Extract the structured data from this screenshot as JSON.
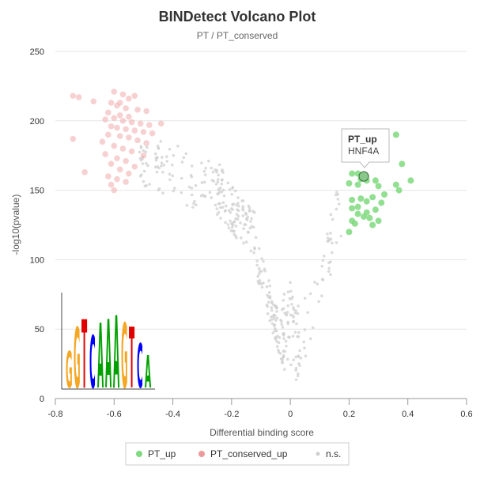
{
  "colors": {
    "pt_up": "#7fd97f",
    "pt_up_stroke": "#5fc35f",
    "pt_conserved_up": "#f2b3b3",
    "ns": "#cfcfcf",
    "grid": "#e6e6e6",
    "highlight": "#8bc78b"
  },
  "tooltip": {
    "series": "PT_up",
    "label": "HNF4A"
  },
  "legend": [
    {
      "name": "PT_up",
      "color": "#7fd97f"
    },
    {
      "name": "PT_conserved_up",
      "color": "#ee9a9a"
    },
    {
      "name": "n.s.",
      "color": "#cfcfcf"
    }
  ],
  "motif_logo": {
    "letters": [
      "G",
      "G",
      "T",
      "C",
      "A",
      "A",
      "A",
      "G",
      "T",
      "C",
      "A"
    ],
    "letter_colors": [
      "#f5a623",
      "#f5a623",
      "#e00000",
      "#0000ff",
      "#00a000",
      "#00a000",
      "#00a000",
      "#f5a623",
      "#e00000",
      "#0000ff",
      "#00a000"
    ]
  },
  "chart_data": {
    "type": "scatter",
    "title": "BINDetect Volcano Plot",
    "subtitle": "PT / PT_conserved",
    "xlabel": "Differential binding score",
    "ylabel": "-log10(pvalue)",
    "xlim": [
      -0.8,
      0.6
    ],
    "ylim": [
      0,
      250
    ],
    "x_ticks": [
      "-0.8",
      "-0.6",
      "-0.4",
      "-0.2",
      "0",
      "0.2",
      "0.4",
      "0.6"
    ],
    "y_ticks": [
      "0",
      "50",
      "100",
      "150",
      "200",
      "250"
    ],
    "grid": "horizontal",
    "legend_position": "bottom-center",
    "highlighted_point": {
      "series": "PT_up",
      "label": "HNF4A",
      "x": 0.25,
      "y": 160
    },
    "series": [
      {
        "name": "PT_up",
        "points": [
          [
            0.36,
            190
          ],
          [
            0.38,
            169
          ],
          [
            0.25,
            160
          ],
          [
            0.21,
            162
          ],
          [
            0.23,
            162
          ],
          [
            0.24,
            158
          ],
          [
            0.29,
            157
          ],
          [
            0.26,
            157
          ],
          [
            0.2,
            155
          ],
          [
            0.23,
            154
          ],
          [
            0.3,
            153
          ],
          [
            0.41,
            157
          ],
          [
            0.36,
            154
          ],
          [
            0.37,
            150
          ],
          [
            0.32,
            147
          ],
          [
            0.28,
            145
          ],
          [
            0.24,
            144
          ],
          [
            0.21,
            143
          ],
          [
            0.26,
            142
          ],
          [
            0.31,
            141
          ],
          [
            0.23,
            138
          ],
          [
            0.21,
            137
          ],
          [
            0.29,
            136
          ],
          [
            0.26,
            134
          ],
          [
            0.23,
            133
          ],
          [
            0.25,
            131
          ],
          [
            0.27,
            130
          ],
          [
            0.21,
            128
          ],
          [
            0.3,
            128
          ],
          [
            0.22,
            126
          ],
          [
            0.28,
            125
          ],
          [
            0.2,
            120
          ]
        ]
      },
      {
        "name": "PT_conserved_up",
        "points": [
          [
            -0.6,
            221
          ],
          [
            -0.57,
            219
          ],
          [
            -0.53,
            218
          ],
          [
            -0.55,
            216
          ],
          [
            -0.58,
            213
          ],
          [
            -0.74,
            218
          ],
          [
            -0.72,
            217
          ],
          [
            -0.67,
            214
          ],
          [
            -0.61,
            213
          ],
          [
            -0.59,
            211
          ],
          [
            -0.56,
            209
          ],
          [
            -0.52,
            208
          ],
          [
            -0.49,
            207
          ],
          [
            -0.62,
            206
          ],
          [
            -0.58,
            204
          ],
          [
            -0.55,
            203
          ],
          [
            -0.6,
            202
          ],
          [
            -0.63,
            201
          ],
          [
            -0.57,
            200
          ],
          [
            -0.54,
            199
          ],
          [
            -0.51,
            198
          ],
          [
            -0.48,
            197
          ],
          [
            -0.61,
            196
          ],
          [
            -0.59,
            195
          ],
          [
            -0.56,
            194
          ],
          [
            -0.53,
            193
          ],
          [
            -0.5,
            192
          ],
          [
            -0.47,
            191
          ],
          [
            -0.44,
            198
          ],
          [
            -0.62,
            190
          ],
          [
            -0.58,
            189
          ],
          [
            -0.55,
            188
          ],
          [
            -0.74,
            187
          ],
          [
            -0.52,
            186
          ],
          [
            -0.64,
            185
          ],
          [
            -0.49,
            184
          ],
          [
            -0.6,
            182
          ],
          [
            -0.57,
            180
          ],
          [
            -0.54,
            178
          ],
          [
            -0.63,
            176
          ],
          [
            -0.5,
            175
          ],
          [
            -0.59,
            173
          ],
          [
            -0.56,
            171
          ],
          [
            -0.61,
            169
          ],
          [
            -0.53,
            167
          ],
          [
            -0.58,
            165
          ],
          [
            -0.7,
            163
          ],
          [
            -0.55,
            162
          ],
          [
            -0.62,
            160
          ],
          [
            -0.59,
            158
          ],
          [
            -0.56,
            156
          ],
          [
            -0.61,
            154
          ],
          [
            -0.6,
            150
          ]
        ]
      },
      {
        "name": "n.s.",
        "points": []
      }
    ]
  }
}
